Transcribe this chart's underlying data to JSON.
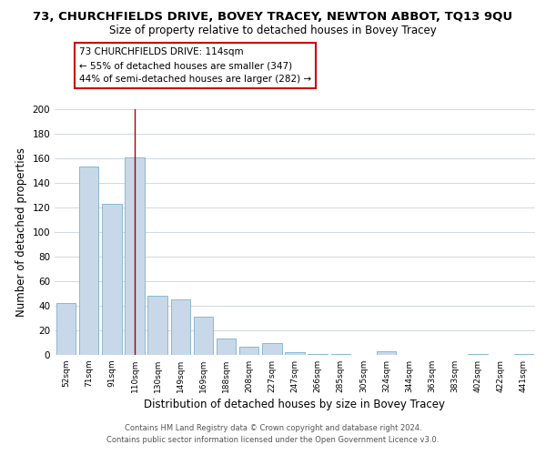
{
  "title": "73, CHURCHFIELDS DRIVE, BOVEY TRACEY, NEWTON ABBOT, TQ13 9QU",
  "subtitle": "Size of property relative to detached houses in Bovey Tracey",
  "xlabel": "Distribution of detached houses by size in Bovey Tracey",
  "ylabel": "Number of detached properties",
  "categories": [
    "52sqm",
    "71sqm",
    "91sqm",
    "110sqm",
    "130sqm",
    "149sqm",
    "169sqm",
    "188sqm",
    "208sqm",
    "227sqm",
    "247sqm",
    "266sqm",
    "285sqm",
    "305sqm",
    "324sqm",
    "344sqm",
    "363sqm",
    "383sqm",
    "402sqm",
    "422sqm",
    "441sqm"
  ],
  "values": [
    42,
    153,
    123,
    161,
    48,
    45,
    31,
    13,
    7,
    10,
    2,
    1,
    1,
    0,
    3,
    0,
    0,
    0,
    1,
    0,
    1
  ],
  "bar_color": "#c8d8e8",
  "bar_edge_color": "#7ab0cc",
  "highlight_index": 3,
  "highlight_line_color": "#aa0000",
  "ylim": [
    0,
    200
  ],
  "yticks": [
    0,
    20,
    40,
    60,
    80,
    100,
    120,
    140,
    160,
    180,
    200
  ],
  "annotation_title": "73 CHURCHFIELDS DRIVE: 114sqm",
  "annotation_line1": "← 55% of detached houses are smaller (347)",
  "annotation_line2": "44% of semi-detached houses are larger (282) →",
  "footer_line1": "Contains HM Land Registry data © Crown copyright and database right 2024.",
  "footer_line2": "Contains public sector information licensed under the Open Government Licence v3.0.",
  "background_color": "#ffffff",
  "grid_color": "#d0d8e0",
  "title_fontsize": 9.5,
  "subtitle_fontsize": 8.5,
  "axis_label_fontsize": 8.5,
  "footer_fontsize": 6.0
}
